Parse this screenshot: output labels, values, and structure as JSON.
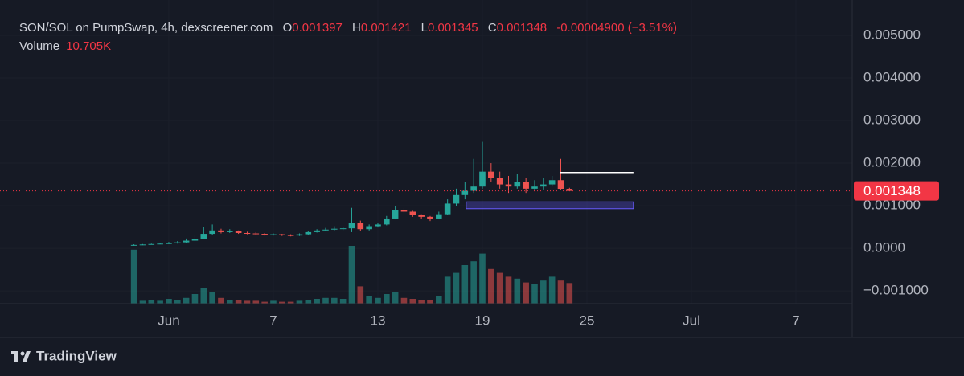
{
  "chart_data": {
    "type": "candlestick",
    "title": "SON/SOL on PumpSwap, 4h, dexscreener.com",
    "ohlc_labels": {
      "open": "O",
      "high": "H",
      "low": "L",
      "close": "C"
    },
    "last": {
      "open": "0.001397",
      "high": "0.001421",
      "low": "0.001345",
      "close": "0.001348",
      "change": "-0.00004900 (−3.51%)"
    },
    "volume_label": "Volume",
    "last_volume": "10.705K",
    "up_color": "#26a69a",
    "down_color": "#ef5350",
    "grid": true,
    "x": [
      -1,
      -0.5,
      0,
      0.5,
      1,
      1.5,
      2,
      2.5,
      3,
      3.5,
      4,
      4.5,
      5,
      5.5,
      6,
      6.5,
      7,
      7.5,
      8,
      8.5,
      9,
      9.5,
      10,
      10.5,
      11,
      11.5,
      12,
      12.5,
      13,
      13.5,
      14,
      14.5,
      15,
      15.5,
      16,
      16.5,
      17,
      17.5,
      18,
      18.5,
      19,
      19.5,
      20,
      20.5,
      21,
      21.5,
      22,
      22.5,
      23,
      23.5,
      24
    ],
    "open": [
      7e-05,
      8e-05,
      9e-05,
      0.0001,
      0.00011,
      0.00012,
      0.00014,
      0.00018,
      0.00022,
      0.00034,
      0.00042,
      0.00038,
      0.0004,
      0.00036,
      0.00035,
      0.00034,
      0.00032,
      0.00033,
      0.00031,
      0.0003,
      0.00033,
      0.00038,
      0.00042,
      0.00044,
      0.00046,
      0.00047,
      0.0006,
      0.00045,
      0.00052,
      0.00056,
      0.0007,
      0.0009,
      0.00086,
      0.00078,
      0.00074,
      0.0007,
      0.0008,
      0.00105,
      0.00125,
      0.00135,
      0.00145,
      0.0018,
      0.00165,
      0.0015,
      0.00145,
      0.00155,
      0.0014,
      0.00145,
      0.0015,
      0.0016,
      0.001397
    ],
    "high": [
      9.5e-05,
      0.0001,
      0.00011,
      0.00013,
      0.00015,
      0.00017,
      0.00023,
      0.0003,
      0.0005,
      0.00056,
      0.00046,
      0.00045,
      0.00042,
      0.00039,
      0.00038,
      0.00036,
      0.00035,
      0.00034,
      0.00033,
      0.00035,
      0.0004,
      0.00045,
      0.00048,
      0.00052,
      0.0005,
      0.00095,
      0.00065,
      0.00056,
      0.0006,
      0.00076,
      0.001,
      0.00095,
      0.00088,
      0.0008,
      0.00076,
      0.00086,
      0.00115,
      0.0014,
      0.00155,
      0.0021,
      0.0025,
      0.002,
      0.0018,
      0.0017,
      0.00175,
      0.00165,
      0.0016,
      0.00165,
      0.0017,
      0.0021,
      0.001421
    ],
    "low": [
      6e-05,
      7.5e-05,
      8.5e-05,
      9.5e-05,
      0.0001,
      0.00011,
      0.00013,
      0.00017,
      0.00021,
      0.00032,
      0.00035,
      0.00036,
      0.00034,
      0.00033,
      0.00032,
      0.0003,
      0.0003,
      0.00029,
      0.00028,
      0.00029,
      0.00032,
      0.00037,
      0.0004,
      0.00042,
      0.00043,
      0.00038,
      0.0004,
      0.00042,
      0.00049,
      0.00054,
      0.00068,
      0.00082,
      0.00074,
      0.0007,
      0.00064,
      0.00068,
      0.00078,
      0.001,
      0.00115,
      0.0013,
      0.0014,
      0.00155,
      0.0014,
      0.0013,
      0.0014,
      0.0013,
      0.00135,
      0.00138,
      0.00145,
      0.00138,
      0.001345
    ],
    "close": [
      8e-05,
      9e-05,
      0.0001,
      0.00011,
      0.00012,
      0.00014,
      0.00018,
      0.00022,
      0.00034,
      0.00042,
      0.00038,
      0.0004,
      0.00036,
      0.00035,
      0.00034,
      0.00032,
      0.00033,
      0.00031,
      0.0003,
      0.00033,
      0.00038,
      0.00042,
      0.00044,
      0.00046,
      0.00047,
      0.0006,
      0.00045,
      0.00052,
      0.00056,
      0.0007,
      0.0009,
      0.00086,
      0.00078,
      0.00074,
      0.0007,
      0.0008,
      0.00105,
      0.00125,
      0.00135,
      0.00145,
      0.0018,
      0.00165,
      0.0015,
      0.00145,
      0.00155,
      0.0014,
      0.00145,
      0.0015,
      0.0016,
      0.001397,
      0.001348
    ],
    "volume": [
      28000,
      1500,
      2000,
      1500,
      2500,
      2000,
      3000,
      5000,
      8000,
      6000,
      3000,
      2000,
      2000,
      1500,
      1500,
      1000,
      1500,
      1000,
      1000,
      1500,
      2000,
      2500,
      3000,
      3000,
      2500,
      30000,
      9000,
      4000,
      3000,
      5000,
      6000,
      3000,
      2500,
      2000,
      2000,
      4000,
      14000,
      16000,
      20000,
      22000,
      26000,
      18000,
      16000,
      14000,
      13000,
      11000,
      10000,
      12000,
      14000,
      12000,
      10705
    ],
    "xlim": [
      -8.69,
      40.23
    ],
    "xticks": [
      {
        "value": 1,
        "label": "Jun"
      },
      7,
      13,
      19,
      25,
      {
        "value": 31,
        "label": "Jul"
      },
      {
        "value": 37,
        "label": "7"
      }
    ],
    "ylim": [
      -0.0013,
      0.00583
    ],
    "yticks": [
      {
        "value": 0.005,
        "label": "0.005000"
      },
      {
        "value": 0.004,
        "label": "0.004000"
      },
      {
        "value": 0.003,
        "label": "0.003000"
      },
      {
        "value": 0.002,
        "label": "0.002000"
      },
      {
        "value": 0.001,
        "label": "0.001000"
      },
      {
        "value": 0,
        "label": "0.0000"
      },
      {
        "value": -0.001,
        "label": "−0.001000"
      }
    ],
    "annotations": {
      "level_line": {
        "x": [
          23.47,
          27.67
        ],
        "y": 0.00178
      },
      "zone": {
        "x": [
          18.07,
          27.67
        ],
        "y": [
          0.00093,
          0.00109
        ]
      }
    },
    "brand": "TradingView"
  }
}
